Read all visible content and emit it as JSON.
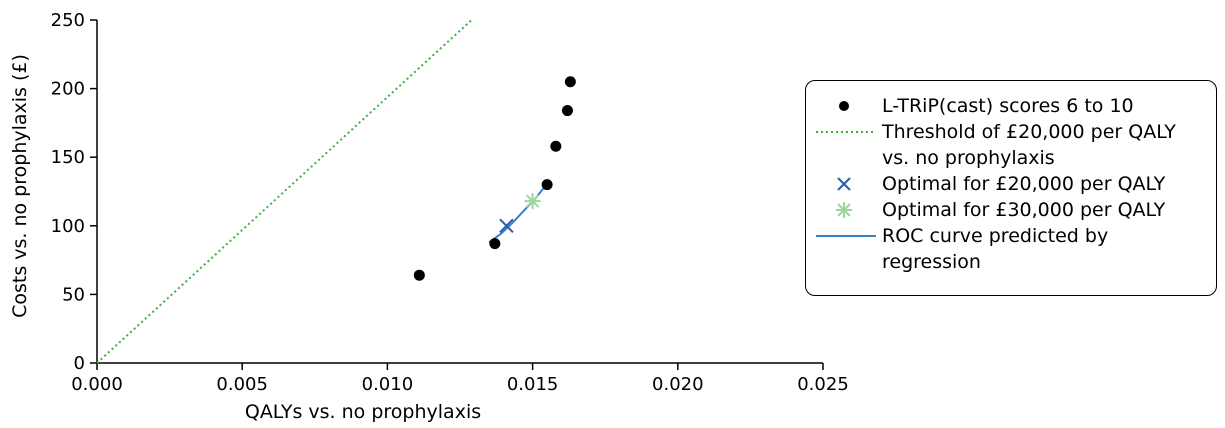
{
  "chart_data": {
    "type": "scatter",
    "title": "",
    "xlabel": "QALYs vs. no prophylaxis",
    "ylabel": "Costs vs. no prophylaxis (£)",
    "xlim": [
      0,
      0.025
    ],
    "ylim": [
      0,
      250
    ],
    "x_ticks": [
      "0.000",
      "0.005",
      "0.010",
      "0.015",
      "0.020",
      "0.025"
    ],
    "y_ticks": [
      "0",
      "50",
      "100",
      "150",
      "200",
      "250"
    ],
    "legend_position": "right",
    "series": [
      {
        "name": "L-TRiP(cast) scores 6 to 10",
        "kind": "scatter-dots",
        "color": "#000000",
        "points": [
          {
            "x": 0.0111,
            "y": 64
          },
          {
            "x": 0.0137,
            "y": 87
          },
          {
            "x": 0.0155,
            "y": 130
          },
          {
            "x": 0.0158,
            "y": 158
          },
          {
            "x": 0.0162,
            "y": 184
          },
          {
            "x": 0.0163,
            "y": 205
          }
        ]
      },
      {
        "name": "Threshold of £20,000 per QALY vs. no prophylaxis",
        "kind": "dotted-line",
        "color": "#3fae3f",
        "points": [
          {
            "x": 0,
            "y": 0
          },
          {
            "x": 0.0129,
            "y": 250
          }
        ]
      },
      {
        "name": "Optimal for £20,000 per QALY",
        "kind": "x-marker",
        "color": "#2a5caa",
        "points": [
          {
            "x": 0.0141,
            "y": 100
          }
        ]
      },
      {
        "name": "Optimal for £30,000 per QALY",
        "kind": "star-marker",
        "color": "#9fd49a",
        "points": [
          {
            "x": 0.015,
            "y": 118
          }
        ]
      },
      {
        "name": "ROC curve predicted by regression",
        "kind": "curve",
        "color": "#3a7fc9",
        "points": [
          {
            "x": 0.0135,
            "y": 88
          },
          {
            "x": 0.0139,
            "y": 94
          },
          {
            "x": 0.0143,
            "y": 102
          },
          {
            "x": 0.0147,
            "y": 111
          },
          {
            "x": 0.0151,
            "y": 120
          },
          {
            "x": 0.0154,
            "y": 128
          }
        ]
      }
    ]
  },
  "legend": {
    "items": [
      {
        "label": "L-TRiP(cast) scores 6 to 10"
      },
      {
        "label": "Threshold of £20,000 per QALY",
        "label2": "vs. no prophylaxis"
      },
      {
        "label": "Optimal for £20,000 per QALY"
      },
      {
        "label": "Optimal for £30,000 per QALY"
      },
      {
        "label": "ROC curve predicted by",
        "label2": "regression"
      }
    ]
  }
}
